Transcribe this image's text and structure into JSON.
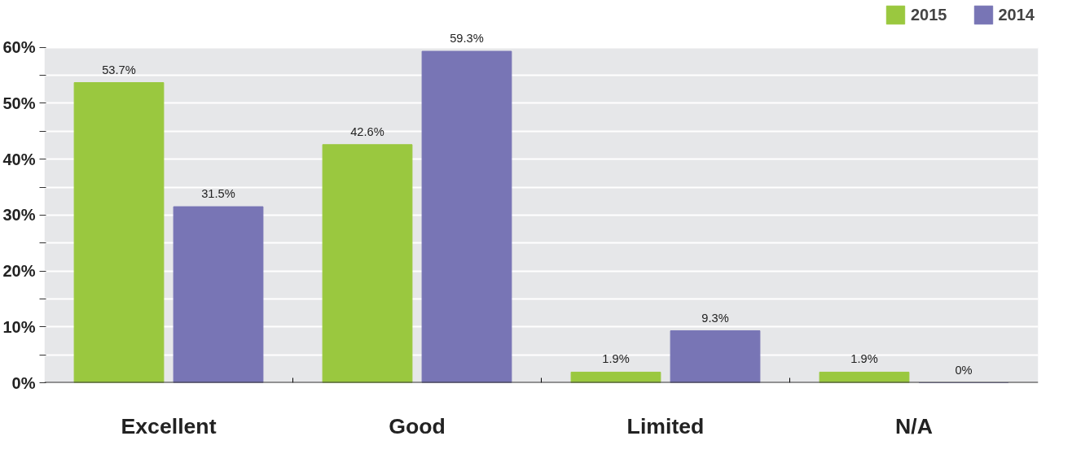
{
  "chart_data": {
    "type": "bar",
    "categories": [
      "Excellent",
      "Good",
      "Limited",
      "N/A"
    ],
    "series": [
      {
        "name": "2015",
        "color": "#9ac83f",
        "values": [
          53.7,
          42.6,
          1.9,
          1.9
        ],
        "value_labels": [
          "53.7%",
          "42.6%",
          "1.9%",
          "1.9%"
        ]
      },
      {
        "name": "2014",
        "color": "#7875b5",
        "values": [
          31.5,
          59.3,
          9.3,
          0
        ],
        "value_labels": [
          "31.5%",
          "59.3%",
          "9.3%",
          "0%"
        ]
      }
    ],
    "ylim": [
      0,
      60
    ],
    "yticks": [
      {
        "value": 0,
        "label": "0%"
      },
      {
        "value": 5,
        "label": null
      },
      {
        "value": 10,
        "label": "10%"
      },
      {
        "value": 15,
        "label": null
      },
      {
        "value": 20,
        "label": "20%"
      },
      {
        "value": 25,
        "label": null
      },
      {
        "value": 30,
        "label": "30%"
      },
      {
        "value": 35,
        "label": null
      },
      {
        "value": 40,
        "label": "40%"
      },
      {
        "value": 45,
        "label": null
      },
      {
        "value": 50,
        "label": "50%"
      },
      {
        "value": 55,
        "label": null
      },
      {
        "value": 60,
        "label": "60%"
      }
    ],
    "grid": "y",
    "legend": "top right"
  }
}
